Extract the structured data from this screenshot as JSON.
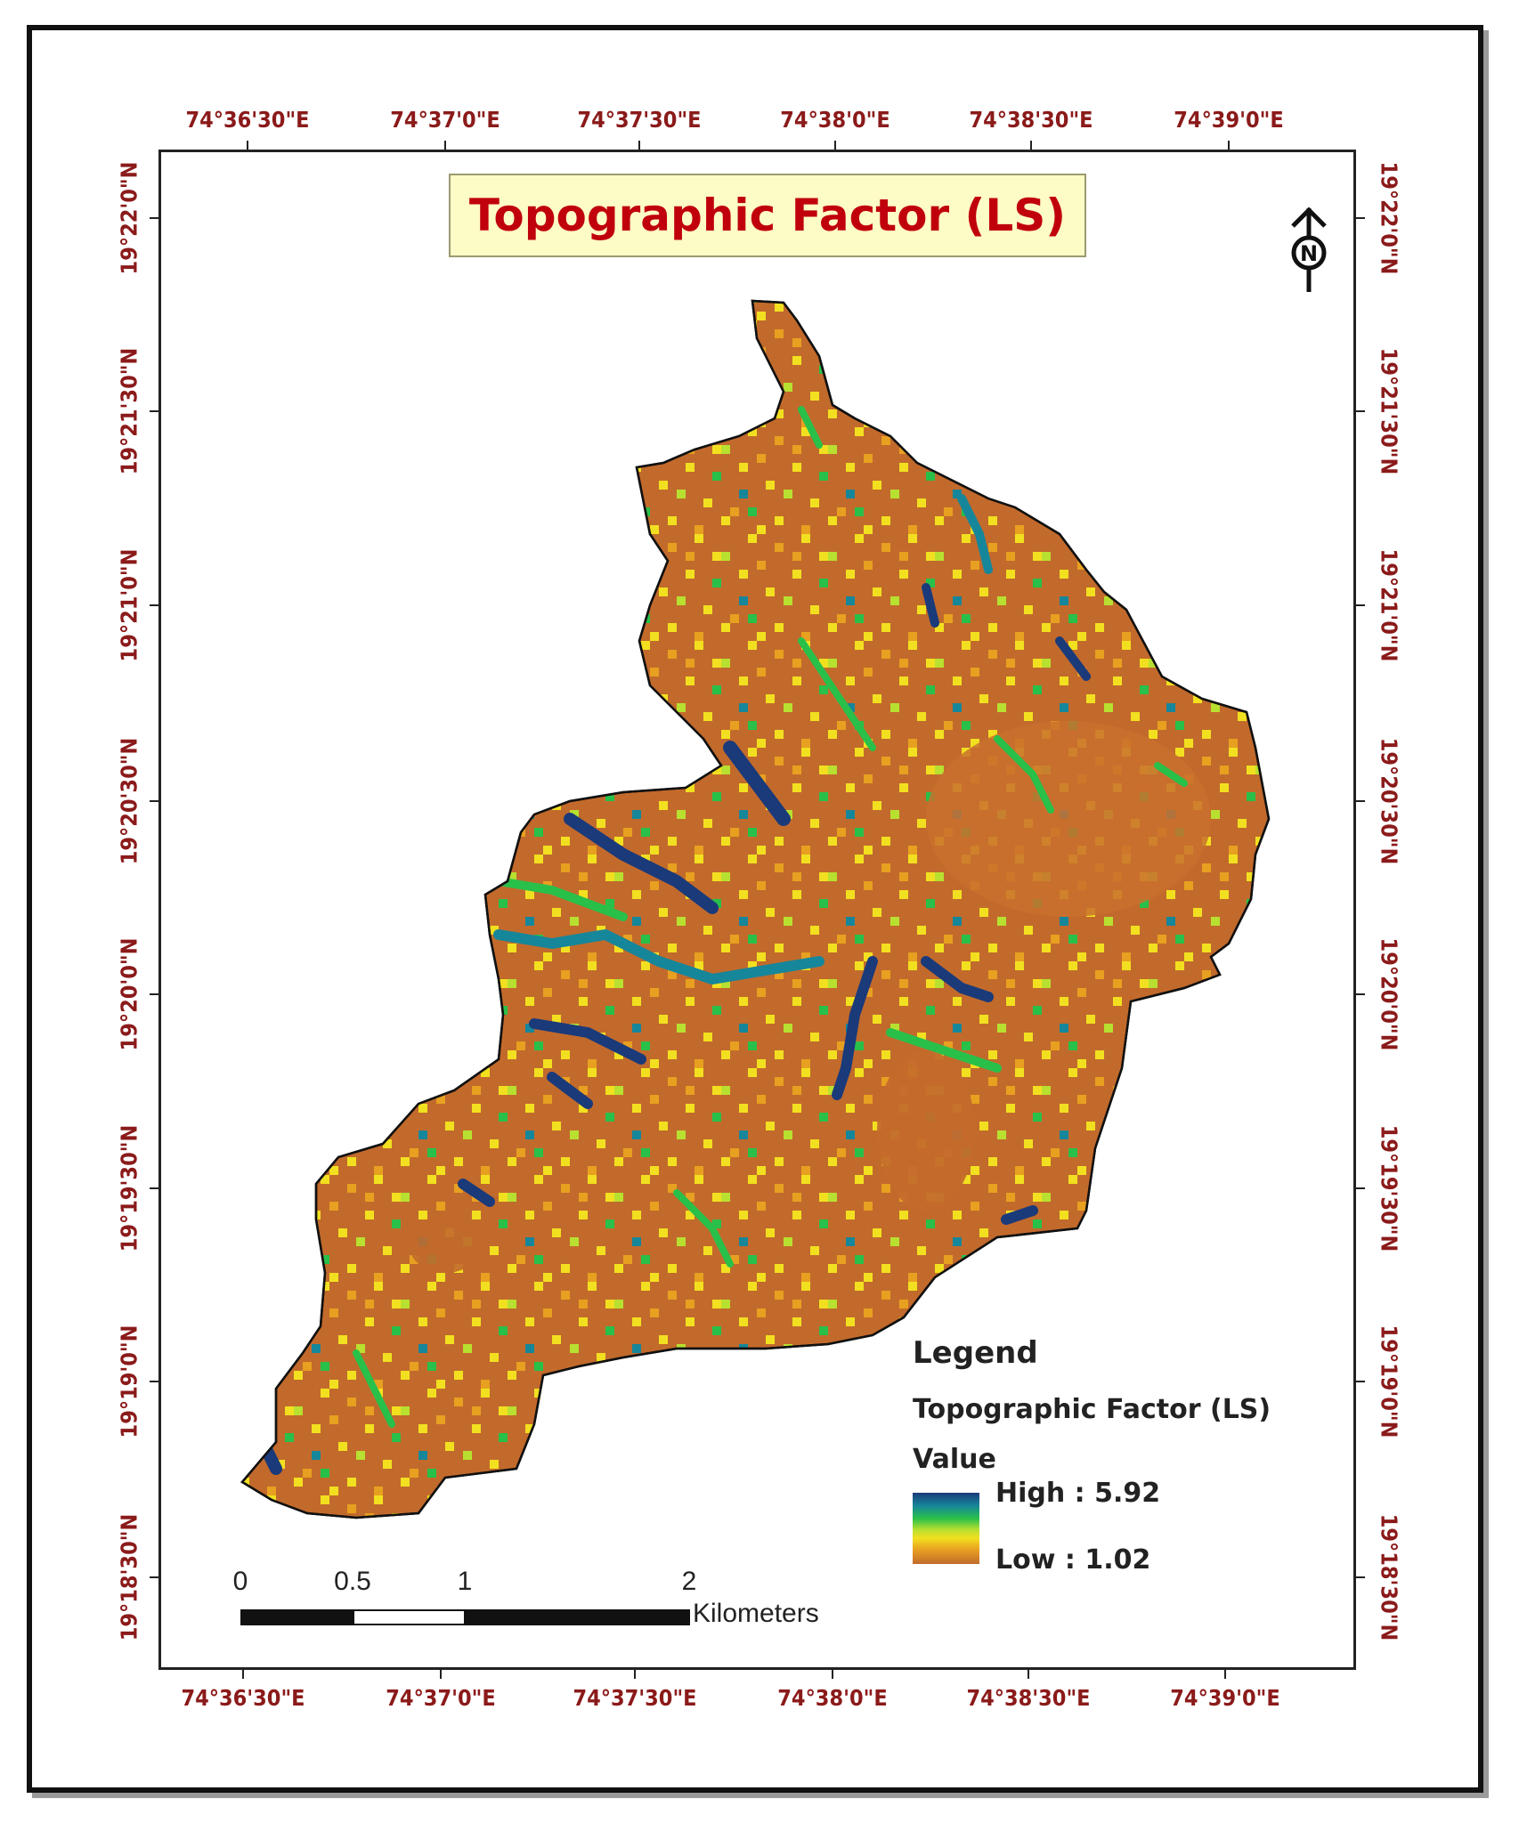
{
  "map": {
    "title": "Topographic Factor (LS)",
    "north_arrow_label": "N",
    "longitude_ticks": [
      "74°36'30\"E",
      "74°37'0\"E",
      "74°37'30\"E",
      "74°38'0\"E",
      "74°38'30\"E",
      "74°39'0\"E"
    ],
    "latitude_ticks": [
      "19°22'0\"N",
      "19°21'30\"N",
      "19°21'0\"N",
      "19°20'30\"N",
      "19°20'0\"N",
      "19°19'30\"N",
      "19°19'0\"N",
      "19°18'30\"N"
    ],
    "legend": {
      "heading": "Legend",
      "layer_name": "Topographic Factor (LS)",
      "field": "Value",
      "high_label": "High : 5.92",
      "low_label": "Low : 1.02",
      "high_value": 5.92,
      "low_value": 1.02,
      "ramp_colors": [
        "#1a3a7a",
        "#16869a",
        "#29c04a",
        "#b8e030",
        "#f2e020",
        "#e8a020",
        "#c26a2c"
      ]
    },
    "scale_bar": {
      "labels": [
        "0",
        "0.5",
        "1",
        "2"
      ],
      "unit": "Kilometers"
    },
    "colors": {
      "coordinate_text": "#8b1a1a",
      "title_text": "#c0000c",
      "title_background": "#fdfcc6",
      "dominant_fill": "#c26a2c"
    }
  }
}
